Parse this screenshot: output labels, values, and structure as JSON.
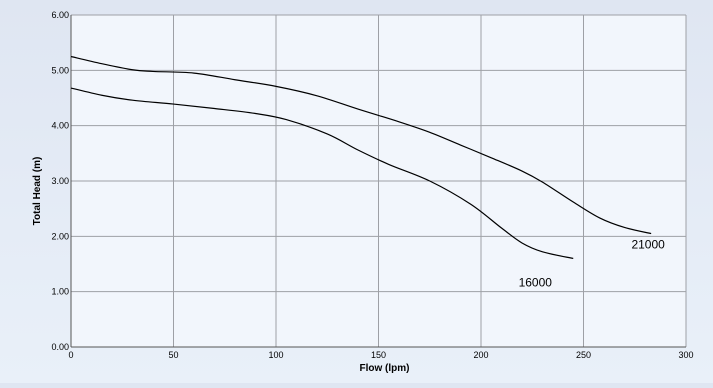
{
  "chart_data": {
    "type": "line",
    "title": "",
    "xlabel": "Flow (lpm)",
    "ylabel": "Total Head (m)",
    "xlim": [
      0,
      300
    ],
    "ylim": [
      0,
      6
    ],
    "x_ticks": [
      "0",
      "50",
      "100",
      "150",
      "200",
      "250",
      "300"
    ],
    "y_ticks": [
      "0.00",
      "1.00",
      "2.00",
      "3.00",
      "4.00",
      "5.00",
      "6.00"
    ],
    "grid": true,
    "legend": "none",
    "series": [
      {
        "name": "21000",
        "x": [
          0,
          15,
          30,
          40,
          60,
          80,
          100,
          120,
          140,
          160,
          175,
          190,
          205,
          220,
          230,
          245,
          258,
          270,
          283
        ],
        "y": [
          5.25,
          5.12,
          5.01,
          4.98,
          4.95,
          4.83,
          4.71,
          4.54,
          4.3,
          4.07,
          3.88,
          3.65,
          3.42,
          3.18,
          2.98,
          2.62,
          2.33,
          2.16,
          2.05
        ]
      },
      {
        "name": "16000",
        "x": [
          0,
          15,
          30,
          50,
          70,
          90,
          105,
          125,
          140,
          155,
          175,
          195,
          210,
          220,
          230,
          245
        ],
        "y": [
          4.68,
          4.55,
          4.46,
          4.39,
          4.31,
          4.22,
          4.11,
          3.85,
          3.56,
          3.3,
          3.0,
          2.58,
          2.15,
          1.88,
          1.72,
          1.6
        ]
      }
    ],
    "colors": {
      "line": "#000000",
      "grid": "#9ea0a6",
      "plot_bg": "#f2f6fc"
    }
  }
}
